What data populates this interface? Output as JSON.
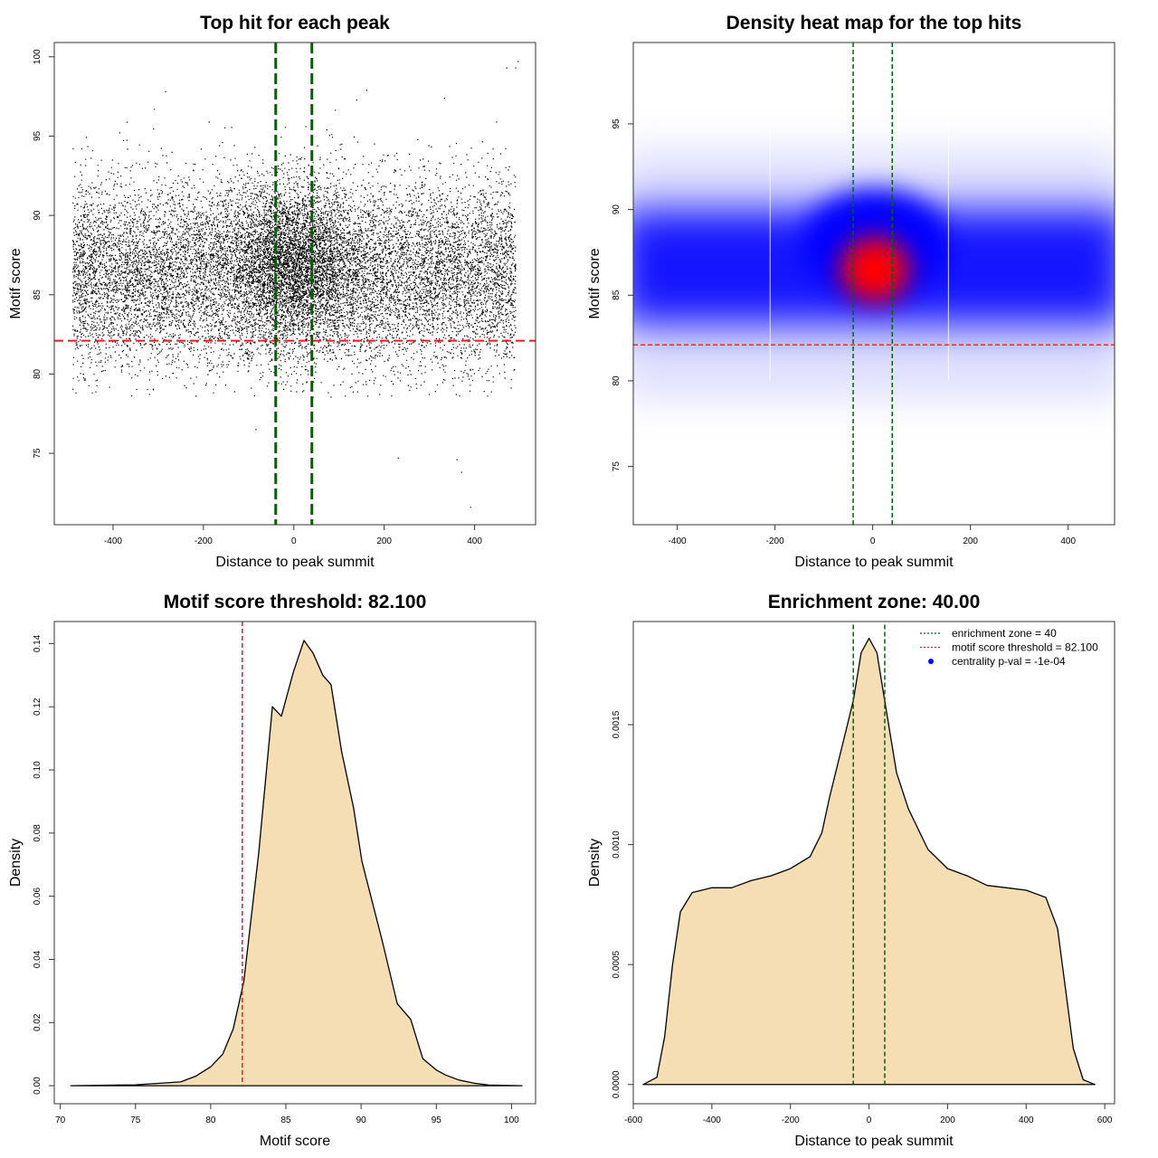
{
  "colors": {
    "threshold": "#dd2222",
    "zone": "#006400",
    "fill": "#f5deb3",
    "points": "#000000",
    "heat_low": "#0000ff",
    "heat_high": "#ff0000"
  },
  "chart_data": [
    {
      "type": "scatter",
      "title": "Top hit for each peak",
      "xlabel": "Distance to peak summit",
      "ylabel": "Motif score",
      "xlim": [
        -530,
        535
      ],
      "ylim": [
        70.5,
        100.9
      ],
      "xticks": [
        -400,
        -200,
        0,
        200,
        400
      ],
      "yticks": [
        75,
        80,
        85,
        90,
        95,
        100
      ],
      "hlines": [
        82.1
      ],
      "vlines": [
        -40,
        40
      ],
      "outliers": [
        [
          -85,
          76.5
        ],
        [
          230,
          74.7
        ],
        [
          360,
          74.6
        ],
        [
          370,
          73.8
        ],
        [
          390,
          71.6
        ],
        [
          470,
          99.3
        ],
        [
          490,
          99.3
        ],
        [
          495,
          99.7
        ],
        [
          -285,
          97.8
        ],
        [
          160,
          97.9
        ]
      ]
    },
    {
      "type": "heatmap",
      "title": "Density heat map for the top hits",
      "xlabel": "Distance to peak summit",
      "ylabel": "Motif score",
      "xlim": [
        -490,
        495
      ],
      "ylim": [
        71.6,
        99.75
      ],
      "xticks": [
        -400,
        -200,
        0,
        200,
        400
      ],
      "yticks": [
        75,
        80,
        85,
        90,
        95
      ],
      "hlines": [
        82.1
      ],
      "vlines": [
        -40,
        40
      ],
      "peak": [
        5,
        86.5
      ]
    },
    {
      "type": "area",
      "title": "Motif score threshold: 82.100",
      "xlabel": "Motif score",
      "ylabel": "Density",
      "xlim": [
        69.6,
        101.6
      ],
      "ylim": [
        -0.0057,
        0.147
      ],
      "xticks": [
        70,
        75,
        80,
        85,
        90,
        95,
        100
      ],
      "yticks": [
        0,
        0.02,
        0.04,
        0.06,
        0.08,
        0.1,
        0.12,
        0.14
      ],
      "ytick_labels": [
        "0.00",
        "0.02",
        "0.04",
        "0.06",
        "0.08",
        "0.10",
        "0.12",
        "0.14"
      ],
      "vlines": [
        82.1
      ],
      "x": [
        70.7,
        75,
        78,
        79,
        80,
        80.8,
        81.5,
        82.2,
        83.2,
        84.1,
        84.7,
        85.5,
        86.2,
        86.8,
        87.45,
        88,
        88.7,
        89.5,
        90.06,
        90.7,
        91.4,
        92.4,
        93.3,
        94.1,
        95,
        95.6,
        96.5,
        97.5,
        98.5,
        100.7
      ],
      "y": [
        0,
        0.0003,
        0.0012,
        0.003,
        0.006,
        0.01,
        0.018,
        0.033,
        0.074,
        0.12,
        0.117,
        0.131,
        0.141,
        0.137,
        0.13,
        0.127,
        0.106,
        0.088,
        0.071,
        0.059,
        0.046,
        0.026,
        0.021,
        0.0086,
        0.005,
        0.0034,
        0.0018,
        0.0008,
        0.0002,
        0
      ]
    },
    {
      "type": "area",
      "title": "Enrichment zone: 40.00",
      "xlabel": "Distance to peak summit",
      "ylabel": "Density",
      "xlim": [
        -600,
        625
      ],
      "ylim": [
        -8e-05,
        0.00193
      ],
      "xticks": [
        -600,
        -400,
        -200,
        0,
        200,
        400,
        600
      ],
      "yticks": [
        0,
        0.0005,
        0.001,
        0.0015
      ],
      "ytick_labels": [
        "0.0000",
        "0.0005",
        "0.0010",
        "0.0015"
      ],
      "vlines": [
        -40,
        40
      ],
      "x": [
        -575,
        -540,
        -520,
        -500,
        -480,
        -450,
        -400,
        -350,
        -300,
        -250,
        -200,
        -150,
        -120,
        -100,
        -70,
        -40,
        -20,
        0,
        20,
        40,
        70,
        100,
        150,
        200,
        250,
        300,
        350,
        400,
        450,
        480,
        500,
        520,
        545,
        575
      ],
      "y": [
        0,
        3e-05,
        0.0002,
        0.0005,
        0.00072,
        0.0008,
        0.00082,
        0.00082,
        0.00085,
        0.00087,
        0.0009,
        0.00095,
        0.00105,
        0.0012,
        0.0014,
        0.0016,
        0.0018,
        0.00186,
        0.0018,
        0.0016,
        0.0013,
        0.00115,
        0.00098,
        0.0009,
        0.00087,
        0.00083,
        0.00082,
        0.00081,
        0.00078,
        0.00065,
        0.0004,
        0.00015,
        2e-05,
        0
      ],
      "legend": {
        "position": "top-right",
        "entries": [
          "enrichment zone = 40",
          "motif score threshold = 82.100",
          "centrality p-val = -1e-04"
        ]
      }
    }
  ]
}
